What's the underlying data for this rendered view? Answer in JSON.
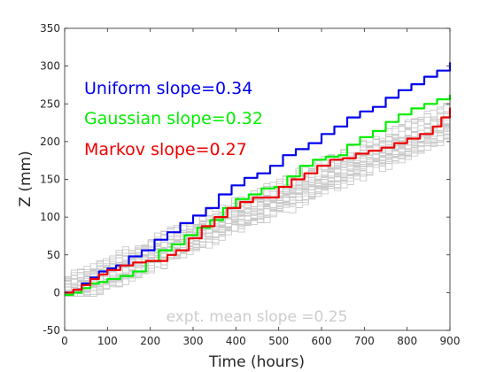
{
  "chart_data": {
    "type": "line",
    "xlabel": "Time (hours)",
    "ylabel": "Z (mm)",
    "xlim": [
      0,
      900
    ],
    "ylim": [
      -50,
      350
    ],
    "xticks": [
      0,
      100,
      200,
      300,
      400,
      500,
      600,
      700,
      800,
      900
    ],
    "yticks": [
      -50,
      0,
      50,
      100,
      150,
      200,
      250,
      300,
      350
    ],
    "grid": false,
    "annotation": "expt. mean slope =0.25",
    "legend_placement": "top-left",
    "series": [
      {
        "name": "Uniform slope=0.34",
        "color": "#0000ee",
        "x": [
          0,
          20,
          40,
          60,
          80,
          100,
          120,
          150,
          180,
          210,
          240,
          270,
          300,
          330,
          360,
          390,
          420,
          450,
          480,
          510,
          540,
          570,
          600,
          630,
          660,
          690,
          720,
          750,
          780,
          810,
          840,
          870,
          900
        ],
        "y": [
          0,
          4,
          12,
          20,
          28,
          32,
          36,
          48,
          56,
          70,
          80,
          92,
          102,
          112,
          130,
          142,
          152,
          158,
          168,
          182,
          190,
          198,
          210,
          220,
          232,
          240,
          246,
          258,
          268,
          276,
          286,
          294,
          305
        ]
      },
      {
        "name": "Gaussian slope=0.32",
        "color": "#00ee00",
        "x": [
          0,
          20,
          40,
          60,
          80,
          100,
          130,
          160,
          190,
          220,
          250,
          280,
          310,
          340,
          370,
          400,
          430,
          460,
          490,
          520,
          550,
          580,
          610,
          640,
          660,
          690,
          720,
          750,
          780,
          810,
          840,
          870,
          900
        ],
        "y": [
          -3,
          0,
          6,
          12,
          14,
          18,
          22,
          28,
          42,
          56,
          64,
          76,
          86,
          96,
          112,
          124,
          130,
          138,
          140,
          154,
          168,
          176,
          180,
          182,
          196,
          206,
          214,
          226,
          236,
          244,
          250,
          256,
          262
        ]
      },
      {
        "name": "Markov slope=0.27",
        "color": "#ee0000",
        "x": [
          0,
          20,
          40,
          60,
          80,
          100,
          130,
          160,
          190,
          220,
          240,
          260,
          290,
          320,
          350,
          380,
          410,
          440,
          470,
          500,
          530,
          560,
          590,
          620,
          650,
          680,
          710,
          740,
          770,
          800,
          830,
          860,
          880,
          900
        ],
        "y": [
          0,
          4,
          10,
          18,
          24,
          30,
          36,
          40,
          42,
          42,
          50,
          56,
          72,
          88,
          100,
          112,
          120,
          126,
          126,
          140,
          150,
          158,
          168,
          176,
          178,
          184,
          188,
          192,
          198,
          204,
          210,
          220,
          232,
          245
        ]
      }
    ]
  }
}
